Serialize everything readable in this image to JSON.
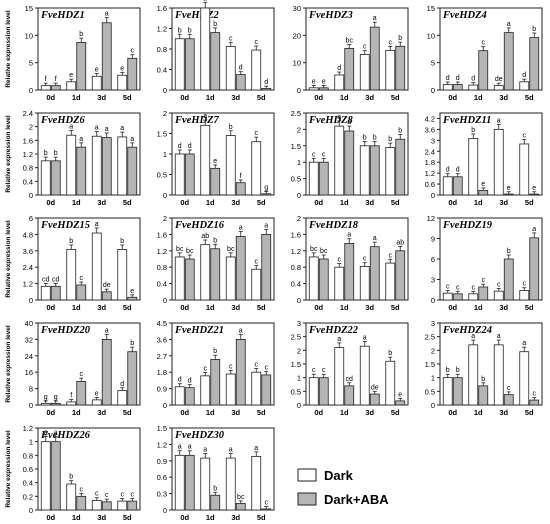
{
  "ylabel": "Relative expression level",
  "categories": [
    "0d",
    "1d",
    "3d",
    "5d"
  ],
  "legend": [
    {
      "label": "Dark",
      "color": "#ffffff"
    },
    {
      "label": "Dark+ABA",
      "color": "#b5b5b5"
    }
  ],
  "chart_data": [
    {
      "type": "bar",
      "title": "FveHDZ1",
      "ylim": [
        0,
        15
      ],
      "yticks": [
        0,
        5,
        10,
        15
      ],
      "series": [
        {
          "name": "Dark",
          "values": [
            0.8,
            1.5,
            2.5,
            2.7
          ],
          "labels": [
            "f",
            "e",
            "e",
            "e"
          ]
        },
        {
          "name": "Dark+ABA",
          "values": [
            0.8,
            8.7,
            12.3,
            5.8
          ],
          "labels": [
            "f",
            "b",
            "a",
            "c"
          ]
        }
      ]
    },
    {
      "type": "bar",
      "title": "FveHDZ2",
      "ylim": [
        0,
        1.6
      ],
      "yticks": [
        0,
        0.4,
        0.8,
        1.2,
        1.6
      ],
      "series": [
        {
          "name": "Dark",
          "values": [
            1.0,
            1.6,
            0.85,
            0.78
          ],
          "labels": [
            "b",
            "a",
            "c",
            "c"
          ]
        },
        {
          "name": "Dark+ABA",
          "values": [
            1.0,
            1.12,
            0.3,
            0.03
          ],
          "labels": [
            "b",
            "b",
            "d",
            "d"
          ]
        }
      ]
    },
    {
      "type": "bar",
      "title": "FveHDZ3",
      "ylim": [
        0,
        30
      ],
      "yticks": [
        0,
        10,
        20,
        30
      ],
      "series": [
        {
          "name": "Dark",
          "values": [
            0.8,
            5.5,
            13.0,
            14.5
          ],
          "labels": [
            "e",
            "d",
            "c",
            "c"
          ]
        },
        {
          "name": "Dark+ABA",
          "values": [
            0.8,
            15.2,
            23.0,
            16.0
          ],
          "labels": [
            "e",
            "bc",
            "a",
            "b"
          ]
        }
      ]
    },
    {
      "type": "bar",
      "title": "FveHDZ4",
      "ylim": [
        0,
        15
      ],
      "yticks": [
        0,
        5,
        10,
        15
      ],
      "series": [
        {
          "name": "Dark",
          "values": [
            1.0,
            0.9,
            0.8,
            1.5
          ],
          "labels": [
            "d",
            "d",
            "de",
            "d"
          ]
        },
        {
          "name": "Dark+ABA",
          "values": [
            1.0,
            7.2,
            10.5,
            9.6
          ],
          "labels": [
            "d",
            "c",
            "a",
            "b"
          ]
        }
      ]
    },
    {
      "type": "bar",
      "title": "FveHDZ6",
      "ylim": [
        0,
        2.4
      ],
      "yticks": [
        0,
        0.4,
        0.8,
        1.2,
        1.6,
        2.0,
        2.4
      ],
      "series": [
        {
          "name": "Dark",
          "values": [
            1.0,
            1.75,
            1.72,
            1.7
          ],
          "labels": [
            "b",
            "a",
            "a",
            "a"
          ]
        },
        {
          "name": "Dark+ABA",
          "values": [
            1.0,
            1.4,
            1.68,
            1.4
          ],
          "labels": [
            "b",
            "a",
            "a",
            "a"
          ]
        }
      ]
    },
    {
      "type": "bar",
      "title": "FveHDZ7",
      "ylim": [
        0,
        2.0
      ],
      "yticks": [
        0,
        0.5,
        1.0,
        1.5,
        2.0
      ],
      "series": [
        {
          "name": "Dark",
          "values": [
            1.0,
            1.7,
            1.45,
            1.3
          ],
          "labels": [
            "d",
            "a",
            "b",
            "c"
          ]
        },
        {
          "name": "Dark+ABA",
          "values": [
            1.0,
            0.65,
            0.3,
            0.03
          ],
          "labels": [
            "d",
            "e",
            "f",
            "g"
          ]
        }
      ]
    },
    {
      "type": "bar",
      "title": "FveHDZ8",
      "ylim": [
        0,
        2.5
      ],
      "yticks": [
        0,
        0.5,
        1.0,
        1.5,
        2.0,
        2.5
      ],
      "series": [
        {
          "name": "Dark",
          "values": [
            1.0,
            2.1,
            1.5,
            1.45
          ],
          "labels": [
            "c",
            "a",
            "b",
            "b"
          ]
        },
        {
          "name": "Dark+ABA",
          "values": [
            1.0,
            1.95,
            1.5,
            1.7
          ],
          "labels": [
            "c",
            "a",
            "b",
            "b"
          ]
        }
      ]
    },
    {
      "type": "bar",
      "title": "FveHDZ11",
      "ylim": [
        0,
        4.5
      ],
      "yticks": [
        0,
        0.6,
        1.2,
        1.8,
        2.4,
        3.0,
        3.6,
        4.2
      ],
      "series": [
        {
          "name": "Dark",
          "values": [
            1.0,
            3.1,
            3.6,
            2.8
          ],
          "labels": [
            "d",
            "b",
            "a",
            "c"
          ]
        },
        {
          "name": "Dark+ABA",
          "values": [
            1.0,
            0.25,
            0.05,
            0.05
          ],
          "labels": [
            "d",
            "e",
            "e",
            "e"
          ]
        }
      ]
    },
    {
      "type": "bar",
      "title": "FveHDZ15",
      "ylim": [
        0,
        6
      ],
      "yticks": [
        0,
        1.2,
        2.4,
        3.6,
        4.8,
        6.0
      ],
      "series": [
        {
          "name": "Dark",
          "values": [
            1.0,
            3.7,
            4.9,
            3.7
          ],
          "labels": [
            "cd",
            "b",
            "a",
            "b"
          ]
        },
        {
          "name": "Dark+ABA",
          "values": [
            1.0,
            1.1,
            0.6,
            0.2
          ],
          "labels": [
            "cd",
            "c",
            "de",
            "e"
          ]
        }
      ]
    },
    {
      "type": "bar",
      "title": "FveHDZ16",
      "ylim": [
        0,
        2.0
      ],
      "yticks": [
        0,
        0.4,
        0.8,
        1.2,
        1.6,
        2.0
      ],
      "series": [
        {
          "name": "Dark",
          "values": [
            1.05,
            1.35,
            1.05,
            0.75
          ],
          "labels": [
            "bc",
            "ab",
            "bc",
            "c"
          ]
        },
        {
          "name": "Dark+ABA",
          "values": [
            1.0,
            1.25,
            1.55,
            1.6
          ],
          "labels": [
            "bc",
            "b",
            "a",
            "a"
          ]
        }
      ]
    },
    {
      "type": "bar",
      "title": "FveHDZ18",
      "ylim": [
        0,
        2.0
      ],
      "yticks": [
        0,
        0.4,
        0.8,
        1.2,
        1.6,
        2.0
      ],
      "series": [
        {
          "name": "Dark",
          "values": [
            1.05,
            0.8,
            0.82,
            0.9
          ],
          "labels": [
            "bc",
            "c",
            "c",
            "c"
          ]
        },
        {
          "name": "Dark+ABA",
          "values": [
            1.0,
            1.38,
            1.3,
            1.2
          ],
          "labels": [
            "bc",
            "a",
            "a",
            "ab"
          ]
        }
      ]
    },
    {
      "type": "bar",
      "title": "FveHDZ19",
      "ylim": [
        0,
        12
      ],
      "yticks": [
        0,
        3,
        6,
        9,
        12
      ],
      "series": [
        {
          "name": "Dark",
          "values": [
            1.0,
            0.9,
            1.3,
            1.4
          ],
          "labels": [
            "c",
            "c",
            "c",
            "c"
          ]
        },
        {
          "name": "Dark+ABA",
          "values": [
            0.9,
            1.9,
            6.0,
            9.1
          ],
          "labels": [
            "c",
            "c",
            "b",
            "a"
          ]
        }
      ]
    },
    {
      "type": "bar",
      "title": "FveHDZ20",
      "ylim": [
        0,
        40
      ],
      "yticks": [
        0,
        8,
        16,
        24,
        32,
        40
      ],
      "series": [
        {
          "name": "Dark",
          "values": [
            0.8,
            1.5,
            2.5,
            7.0
          ],
          "labels": [
            "g",
            "f",
            "e",
            "d"
          ]
        },
        {
          "name": "Dark+ABA",
          "values": [
            0.8,
            11.5,
            32.0,
            26.0
          ],
          "labels": [
            "g",
            "c",
            "a",
            "b"
          ]
        }
      ]
    },
    {
      "type": "bar",
      "title": "FveHDZ21",
      "ylim": [
        0,
        4.5
      ],
      "yticks": [
        0,
        0.9,
        1.8,
        2.7,
        3.6,
        4.5
      ],
      "series": [
        {
          "name": "Dark",
          "values": [
            1.0,
            1.6,
            1.7,
            1.8
          ],
          "labels": [
            "d",
            "c",
            "c",
            "c"
          ]
        },
        {
          "name": "Dark+ABA",
          "values": [
            0.95,
            2.5,
            3.6,
            1.65
          ],
          "labels": [
            "d",
            "b",
            "a",
            "c"
          ]
        }
      ]
    },
    {
      "type": "bar",
      "title": "FveHDZ22",
      "ylim": [
        0,
        3.0
      ],
      "yticks": [
        0,
        0.5,
        1.0,
        1.5,
        2.0,
        2.5,
        3.0
      ],
      "series": [
        {
          "name": "Dark",
          "values": [
            1.0,
            2.1,
            2.15,
            1.6
          ],
          "labels": [
            "c",
            "a",
            "a",
            "b"
          ]
        },
        {
          "name": "Dark+ABA",
          "values": [
            1.0,
            0.7,
            0.4,
            0.15
          ],
          "labels": [
            "c",
            "cd",
            "de",
            "e"
          ]
        }
      ]
    },
    {
      "type": "bar",
      "title": "FveHDZ24",
      "ylim": [
        0,
        3.0
      ],
      "yticks": [
        0,
        0.5,
        1.0,
        1.5,
        2.0,
        2.5,
        3.0
      ],
      "series": [
        {
          "name": "Dark",
          "values": [
            1.0,
            2.2,
            2.2,
            1.95
          ],
          "labels": [
            "b",
            "a",
            "a",
            "a"
          ]
        },
        {
          "name": "Dark+ABA",
          "values": [
            1.0,
            0.7,
            0.38,
            0.18
          ],
          "labels": [
            "b",
            "b",
            "c",
            "c"
          ]
        }
      ]
    },
    {
      "type": "bar",
      "title": "FveHDZ26",
      "ylim": [
        0,
        1.2
      ],
      "yticks": [
        0,
        0.2,
        0.4,
        0.6,
        0.8,
        1.0,
        1.2
      ],
      "series": [
        {
          "name": "Dark",
          "values": [
            1.0,
            0.38,
            0.14,
            0.13
          ],
          "labels": [
            "a",
            "b",
            "c",
            "c"
          ]
        },
        {
          "name": "Dark+ABA",
          "values": [
            1.0,
            0.2,
            0.12,
            0.13
          ],
          "labels": [
            "a",
            "c",
            "c",
            "c"
          ]
        }
      ]
    },
    {
      "type": "bar",
      "title": "FveHDZ30",
      "ylim": [
        0,
        1.5
      ],
      "yticks": [
        0,
        0.3,
        0.6,
        0.9,
        1.2,
        1.5
      ],
      "series": [
        {
          "name": "Dark",
          "values": [
            1.0,
            0.95,
            0.95,
            0.98
          ],
          "labels": [
            "a",
            "a",
            "a",
            "a"
          ]
        },
        {
          "name": "Dark+ABA",
          "values": [
            1.0,
            0.27,
            0.12,
            0.02
          ],
          "labels": [
            "a",
            "b",
            "bc",
            "c"
          ]
        }
      ]
    }
  ]
}
